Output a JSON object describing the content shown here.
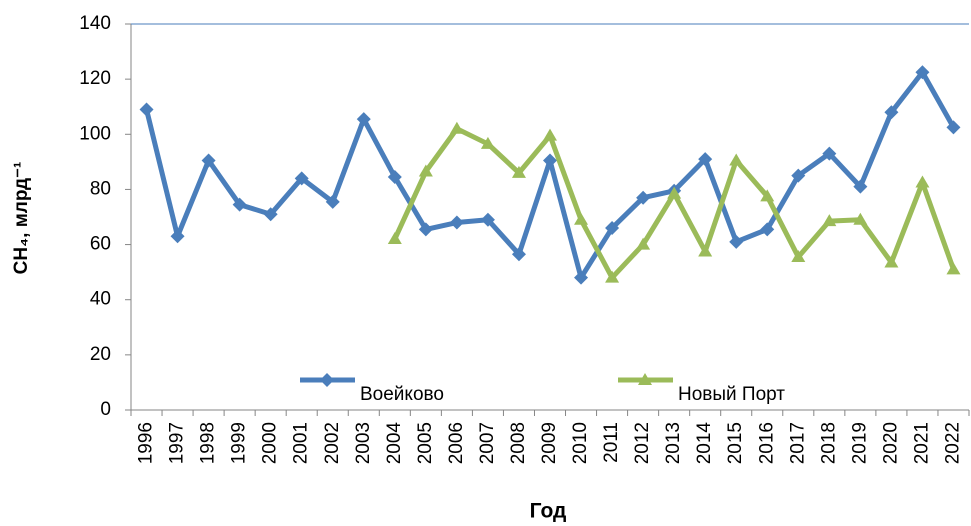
{
  "chart_data": {
    "type": "line",
    "x_label": "Год",
    "y_label": "CH₄,  млрд⁻¹",
    "categories": [
      "1996",
      "1997",
      "1998",
      "1999",
      "2000",
      "2001",
      "2002",
      "2003",
      "2004",
      "2005",
      "2006",
      "2007",
      "2008",
      "2009",
      "2010",
      "2011",
      "2012",
      "2013",
      "2014",
      "2015",
      "2016",
      "2017",
      "2018",
      "2019",
      "2020",
      "2021",
      "2022"
    ],
    "series": [
      {
        "name": "Воейково",
        "color": "#4a7ebb",
        "marker": "diamond",
        "values": [
          109,
          63,
          90.5,
          74.5,
          71,
          84,
          75.5,
          105.5,
          84.5,
          65.5,
          68,
          69,
          56.5,
          90.5,
          48,
          66,
          77,
          79.5,
          91,
          61,
          65.5,
          85,
          93,
          81,
          108,
          122.5,
          102.5
        ]
      },
      {
        "name": "Новый Порт",
        "color": "#9bbb59",
        "marker": "triangle",
        "values": [
          null,
          null,
          null,
          null,
          null,
          null,
          null,
          null,
          62,
          86.5,
          102,
          96.5,
          86,
          99.5,
          69,
          48,
          60,
          78.5,
          57.5,
          90.5,
          77.5,
          55.5,
          68.5,
          69,
          53.5,
          82.5,
          51
        ]
      }
    ],
    "ylim": [
      0,
      140
    ],
    "yticks": [
      0,
      20,
      40,
      60,
      80,
      100,
      120,
      140
    ],
    "grid": false
  }
}
